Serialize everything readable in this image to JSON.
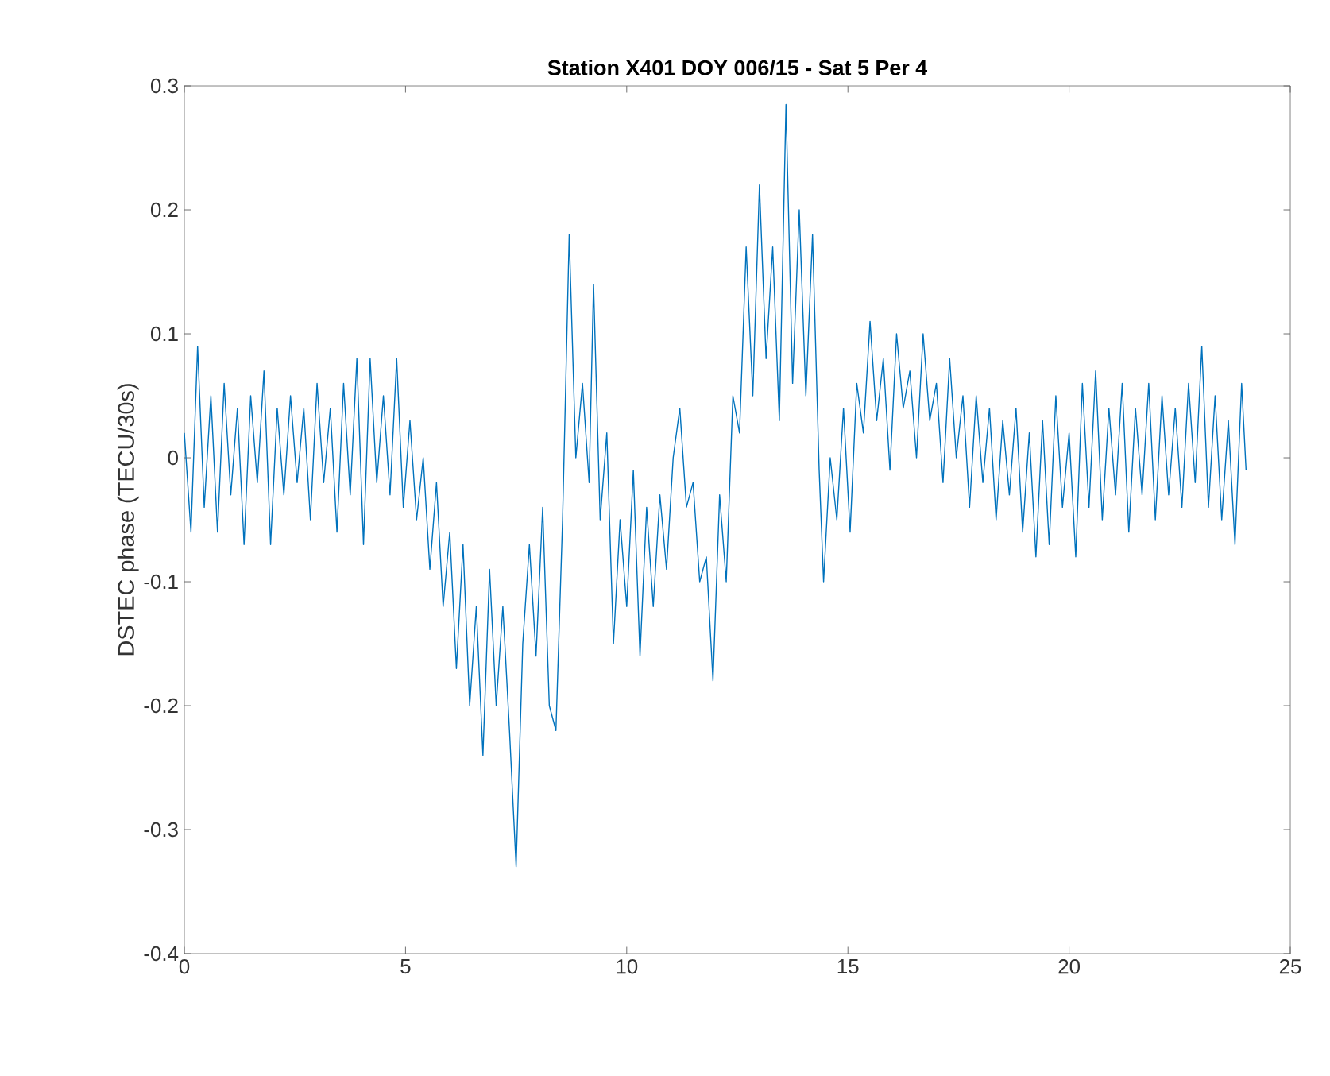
{
  "chart_data": {
    "type": "line",
    "title": "Station X401 DOY 006/15 - Sat  5 Per 4",
    "ylabel": "DSTEC phase (TECU/30s)",
    "xlim": [
      0,
      25
    ],
    "ylim": [
      -0.4,
      0.3
    ],
    "xticks": [
      0,
      5,
      10,
      15,
      20,
      25
    ],
    "yticks": [
      -0.4,
      -0.3,
      -0.2,
      -0.1,
      0,
      0.1,
      0.2,
      0.3
    ],
    "marker": "none",
    "line_style": "solid",
    "series": [
      {
        "color": "#0072bd",
        "x": [
          0,
          0.15,
          0.3,
          0.45,
          0.6,
          0.75,
          0.9,
          1.05,
          1.2,
          1.35,
          1.5,
          1.65,
          1.8,
          1.95,
          2.1,
          2.25,
          2.4,
          2.55,
          2.7,
          2.85,
          3.0,
          3.15,
          3.3,
          3.45,
          3.6,
          3.75,
          3.9,
          4.05,
          4.2,
          4.35,
          4.5,
          4.65,
          4.8,
          4.95,
          5.1,
          5.25,
          5.4,
          5.55,
          5.7,
          5.85,
          6.0,
          6.15,
          6.3,
          6.45,
          6.6,
          6.75,
          6.9,
          7.05,
          7.2,
          7.35,
          7.5,
          7.65,
          7.8,
          7.95,
          8.1,
          8.25,
          8.4,
          8.55,
          8.7,
          8.85,
          9.0,
          9.15,
          9.25,
          9.4,
          9.55,
          9.7,
          9.85,
          10.0,
          10.15,
          10.3,
          10.45,
          10.6,
          10.75,
          10.9,
          11.05,
          11.2,
          11.35,
          11.5,
          11.65,
          11.8,
          11.95,
          12.1,
          12.25,
          12.4,
          12.55,
          12.7,
          12.85,
          13.0,
          13.15,
          13.3,
          13.45,
          13.6,
          13.75,
          13.9,
          14.05,
          14.2,
          14.35,
          14.45,
          14.6,
          14.75,
          14.9,
          15.05,
          15.2,
          15.35,
          15.5,
          15.65,
          15.8,
          15.95,
          16.1,
          16.25,
          16.4,
          16.55,
          16.7,
          16.85,
          17.0,
          17.15,
          17.3,
          17.45,
          17.6,
          17.75,
          17.9,
          18.05,
          18.2,
          18.35,
          18.5,
          18.65,
          18.8,
          18.95,
          19.1,
          19.25,
          19.4,
          19.55,
          19.7,
          19.85,
          20.0,
          20.15,
          20.3,
          20.45,
          20.6,
          20.75,
          20.9,
          21.05,
          21.2,
          21.35,
          21.5,
          21.65,
          21.8,
          21.95,
          22.1,
          22.25,
          22.4,
          22.55,
          22.7,
          22.85,
          23.0,
          23.15,
          23.3,
          23.45,
          23.6,
          23.75,
          23.9,
          24.0
        ],
        "values": [
          0.02,
          -0.06,
          0.09,
          -0.04,
          0.05,
          -0.06,
          0.06,
          -0.03,
          0.04,
          -0.07,
          0.05,
          -0.02,
          0.07,
          -0.07,
          0.04,
          -0.03,
          0.05,
          -0.02,
          0.04,
          -0.05,
          0.06,
          -0.02,
          0.04,
          -0.06,
          0.06,
          -0.03,
          0.08,
          -0.07,
          0.08,
          -0.02,
          0.05,
          -0.03,
          0.08,
          -0.04,
          0.03,
          -0.05,
          0.0,
          -0.09,
          -0.02,
          -0.12,
          -0.06,
          -0.17,
          -0.07,
          -0.2,
          -0.12,
          -0.24,
          -0.09,
          -0.2,
          -0.12,
          -0.22,
          -0.33,
          -0.15,
          -0.07,
          -0.16,
          -0.04,
          -0.2,
          -0.22,
          -0.05,
          0.18,
          0.0,
          0.06,
          -0.02,
          0.14,
          -0.05,
          0.02,
          -0.15,
          -0.05,
          -0.12,
          -0.01,
          -0.16,
          -0.04,
          -0.12,
          -0.03,
          -0.09,
          0.0,
          0.04,
          -0.04,
          -0.02,
          -0.1,
          -0.08,
          -0.18,
          -0.03,
          -0.1,
          0.05,
          0.02,
          0.17,
          0.05,
          0.22,
          0.08,
          0.17,
          0.03,
          0.285,
          0.06,
          0.2,
          0.05,
          0.18,
          -0.01,
          -0.1,
          0.0,
          -0.05,
          0.04,
          -0.06,
          0.06,
          0.02,
          0.11,
          0.03,
          0.08,
          -0.01,
          0.1,
          0.04,
          0.07,
          0.0,
          0.1,
          0.03,
          0.06,
          -0.02,
          0.08,
          0.0,
          0.05,
          -0.04,
          0.05,
          -0.02,
          0.04,
          -0.05,
          0.03,
          -0.03,
          0.04,
          -0.06,
          0.02,
          -0.08,
          0.03,
          -0.07,
          0.05,
          -0.04,
          0.02,
          -0.08,
          0.06,
          -0.04,
          0.07,
          -0.05,
          0.04,
          -0.03,
          0.06,
          -0.06,
          0.04,
          -0.03,
          0.06,
          -0.05,
          0.05,
          -0.03,
          0.04,
          -0.04,
          0.06,
          -0.02,
          0.09,
          -0.04,
          0.05,
          -0.05,
          0.03,
          -0.07,
          0.06,
          -0.01
        ]
      }
    ]
  }
}
